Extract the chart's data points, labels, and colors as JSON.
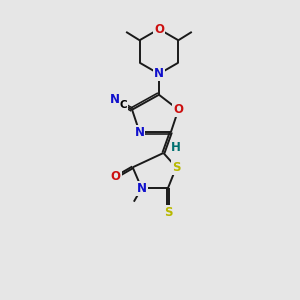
{
  "background_color": "#e6e6e6",
  "figsize": [
    3.0,
    3.0
  ],
  "dpi": 100,
  "atom_colors": {
    "C": "#000000",
    "N": "#1010cc",
    "O": "#cc1010",
    "S": "#b8b800",
    "H": "#007070"
  },
  "bond_color": "#1a1a1a",
  "bond_width": 1.4,
  "xlim": [
    0,
    10
  ],
  "ylim": [
    0,
    10
  ]
}
